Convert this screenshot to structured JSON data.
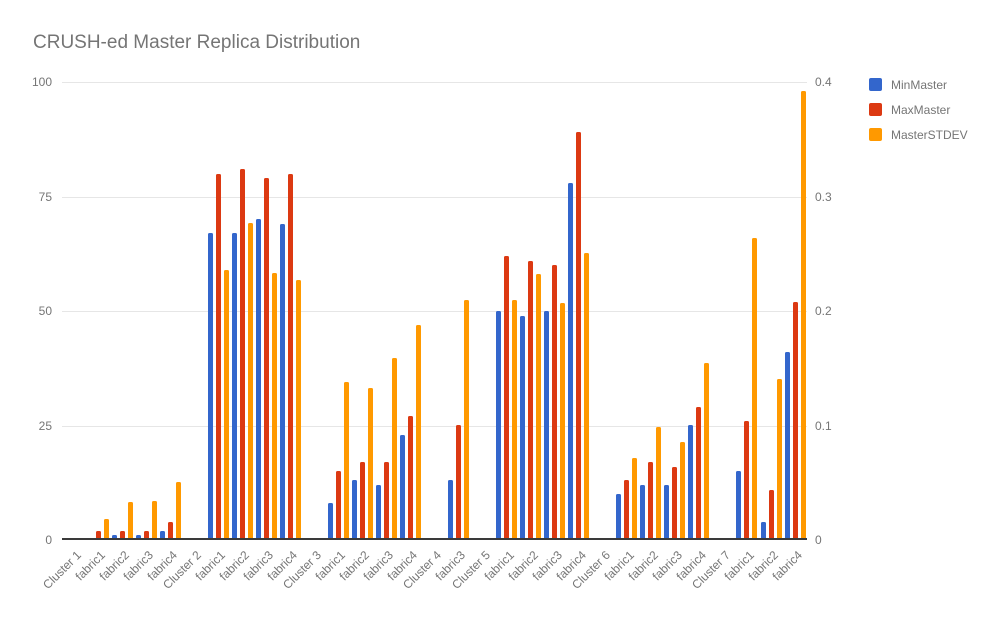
{
  "chart_data": {
    "type": "bar",
    "title": "CRUSH-ed Master Replica Distribution",
    "legend_position": "right",
    "grid": true,
    "categories": [
      "Cluster 1",
      "fabric1",
      "fabric2",
      "fabric3",
      "fabric4",
      "Cluster 2",
      "fabric1",
      "fabric2",
      "fabric3",
      "fabric4",
      "Cluster 3",
      "fabric1",
      "fabric2",
      "fabric3",
      "fabric4",
      "Cluster 4",
      "fabric3",
      "Cluster 5",
      "fabric1",
      "fabric2",
      "fabric3",
      "fabric4",
      "Cluster 6",
      "fabric1",
      "fabric2",
      "fabric3",
      "fabric4",
      "Cluster 7",
      "fabric1",
      "fabric2",
      "fabric4"
    ],
    "series": [
      {
        "name": "MinMaster",
        "color": "#3366CC",
        "axis": "left",
        "values": [
          null,
          0,
          1,
          1,
          2,
          null,
          67,
          67,
          70,
          69,
          null,
          8,
          13,
          12,
          23,
          null,
          13,
          null,
          50,
          49,
          50,
          78,
          null,
          10,
          12,
          12,
          25,
          null,
          15,
          4,
          41
        ]
      },
      {
        "name": "MaxMaster",
        "color": "#DC3912",
        "axis": "left",
        "values": [
          null,
          2,
          2,
          2,
          4,
          null,
          80,
          81,
          79,
          80,
          null,
          15,
          17,
          17,
          27,
          null,
          25,
          null,
          62,
          61,
          60,
          89,
          null,
          13,
          17,
          16,
          29,
          null,
          26,
          11,
          52
        ]
      },
      {
        "name": "MasterSTDEV",
        "color": "#FF9900",
        "axis": "right",
        "values": [
          null,
          0.018,
          0.033,
          0.034,
          0.051,
          null,
          0.236,
          0.277,
          0.233,
          0.227,
          null,
          0.138,
          0.133,
          0.159,
          0.188,
          null,
          0.21,
          null,
          0.21,
          0.232,
          0.207,
          0.251,
          null,
          0.072,
          0.099,
          0.086,
          0.155,
          null,
          0.264,
          0.141,
          0.392
        ]
      }
    ],
    "left_axis": {
      "min": 0,
      "max": 100,
      "tick_values": [
        0,
        25,
        50,
        75,
        100
      ],
      "tick_labels": [
        "0",
        "25",
        "50",
        "75",
        "100"
      ]
    },
    "right_axis": {
      "min": 0,
      "max": 0.4,
      "tick_values": [
        0,
        0.1,
        0.2,
        0.3,
        0.4
      ],
      "tick_labels": [
        "0",
        "0.1",
        "0.2",
        "0.3",
        "0.4"
      ]
    }
  },
  "colors": {
    "series_blue": "#3366CC",
    "series_red": "#DC3912",
    "series_orange": "#FF9900",
    "text_gray": "#757575",
    "gridline": "#e6e6e6",
    "baseline": "#3a3a3a",
    "background": "#ffffff"
  }
}
